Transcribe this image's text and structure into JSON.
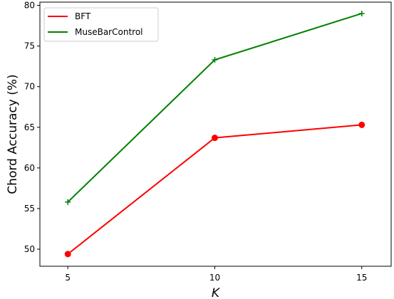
{
  "chart_data": {
    "type": "line",
    "title": "",
    "xlabel": "K",
    "ylabel": "Chord Accuracy (%)",
    "x": [
      5,
      10,
      15
    ],
    "xlim": [
      4.05,
      16.0
    ],
    "ylim": [
      47.9,
      80.4
    ],
    "xticks": [
      "5",
      "10",
      "15"
    ],
    "yticks": [
      "50",
      "55",
      "60",
      "65",
      "70",
      "75",
      "80"
    ],
    "grid": false,
    "legend_position": "top-left",
    "series": [
      {
        "name": "BFT",
        "values": [
          49.4,
          63.7,
          65.3
        ],
        "color": "#ff0000",
        "marker": "circle"
      },
      {
        "name": "MuseBarControl",
        "values": [
          55.8,
          73.3,
          79.0
        ],
        "color": "#008000",
        "marker": "plus"
      }
    ]
  }
}
